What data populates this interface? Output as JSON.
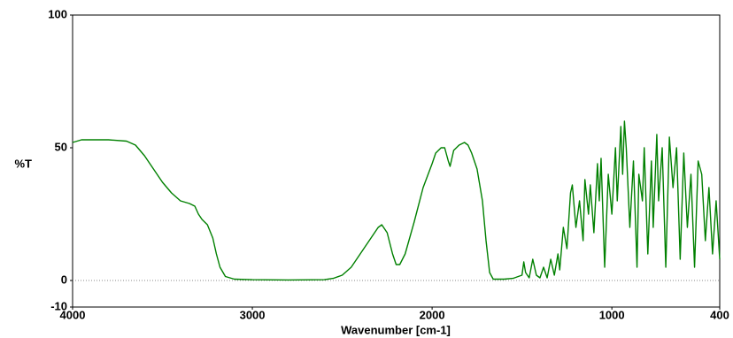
{
  "chart_data": {
    "type": "line",
    "ylabel": "%T",
    "xlabel": "Wavenumber [cm-1]",
    "xlim": [
      4000,
      400
    ],
    "xticks": [
      4000,
      3000,
      2000,
      1000,
      400
    ],
    "ylim": [
      -10,
      100
    ],
    "yticks": [
      -10,
      0,
      50,
      100
    ],
    "reference_line": 0,
    "color": "#008000",
    "x": [
      4000,
      3950,
      3900,
      3800,
      3700,
      3650,
      3600,
      3550,
      3500,
      3450,
      3400,
      3350,
      3320,
      3300,
      3280,
      3250,
      3220,
      3200,
      3180,
      3150,
      3100,
      3000,
      2800,
      2600,
      2550,
      2500,
      2450,
      2400,
      2350,
      2300,
      2280,
      2250,
      2220,
      2200,
      2180,
      2150,
      2100,
      2050,
      2000,
      1980,
      1950,
      1930,
      1910,
      1900,
      1880,
      1850,
      1820,
      1800,
      1780,
      1750,
      1720,
      1700,
      1680,
      1660,
      1600,
      1550,
      1500,
      1490,
      1480,
      1460,
      1440,
      1420,
      1400,
      1380,
      1360,
      1340,
      1320,
      1300,
      1290,
      1270,
      1250,
      1230,
      1220,
      1200,
      1180,
      1160,
      1150,
      1130,
      1120,
      1100,
      1080,
      1070,
      1060,
      1040,
      1020,
      1000,
      980,
      970,
      950,
      940,
      930,
      920,
      900,
      880,
      860,
      850,
      830,
      820,
      800,
      780,
      770,
      750,
      740,
      720,
      700,
      680,
      660,
      640,
      620,
      600,
      580,
      560,
      540,
      520,
      500,
      480,
      460,
      440,
      420,
      400
    ],
    "values": [
      52,
      53,
      53,
      53,
      52.5,
      51,
      47,
      42,
      37,
      33,
      30,
      29,
      28,
      25,
      23,
      21,
      16,
      10,
      5,
      1.5,
      0.5,
      0.3,
      0.2,
      0.3,
      0.8,
      2,
      5,
      10,
      15,
      20,
      21,
      18,
      10,
      6,
      6,
      10,
      22,
      35,
      44,
      48,
      50,
      50,
      45,
      43,
      49,
      51,
      52,
      51,
      48,
      42,
      30,
      15,
      3,
      0.5,
      0.5,
      0.8,
      2,
      7,
      3,
      1,
      8,
      2,
      1,
      5,
      1,
      8,
      2,
      10,
      4,
      20,
      12,
      33,
      36,
      20,
      30,
      15,
      38,
      25,
      36,
      18,
      44,
      30,
      46,
      5,
      40,
      25,
      50,
      30,
      58,
      40,
      60,
      50,
      20,
      45,
      5,
      40,
      30,
      50,
      10,
      45,
      20,
      55,
      30,
      50,
      5,
      54,
      35,
      50,
      8,
      48,
      20,
      40,
      5,
      45,
      40,
      15,
      35,
      10,
      30,
      8
    ]
  }
}
